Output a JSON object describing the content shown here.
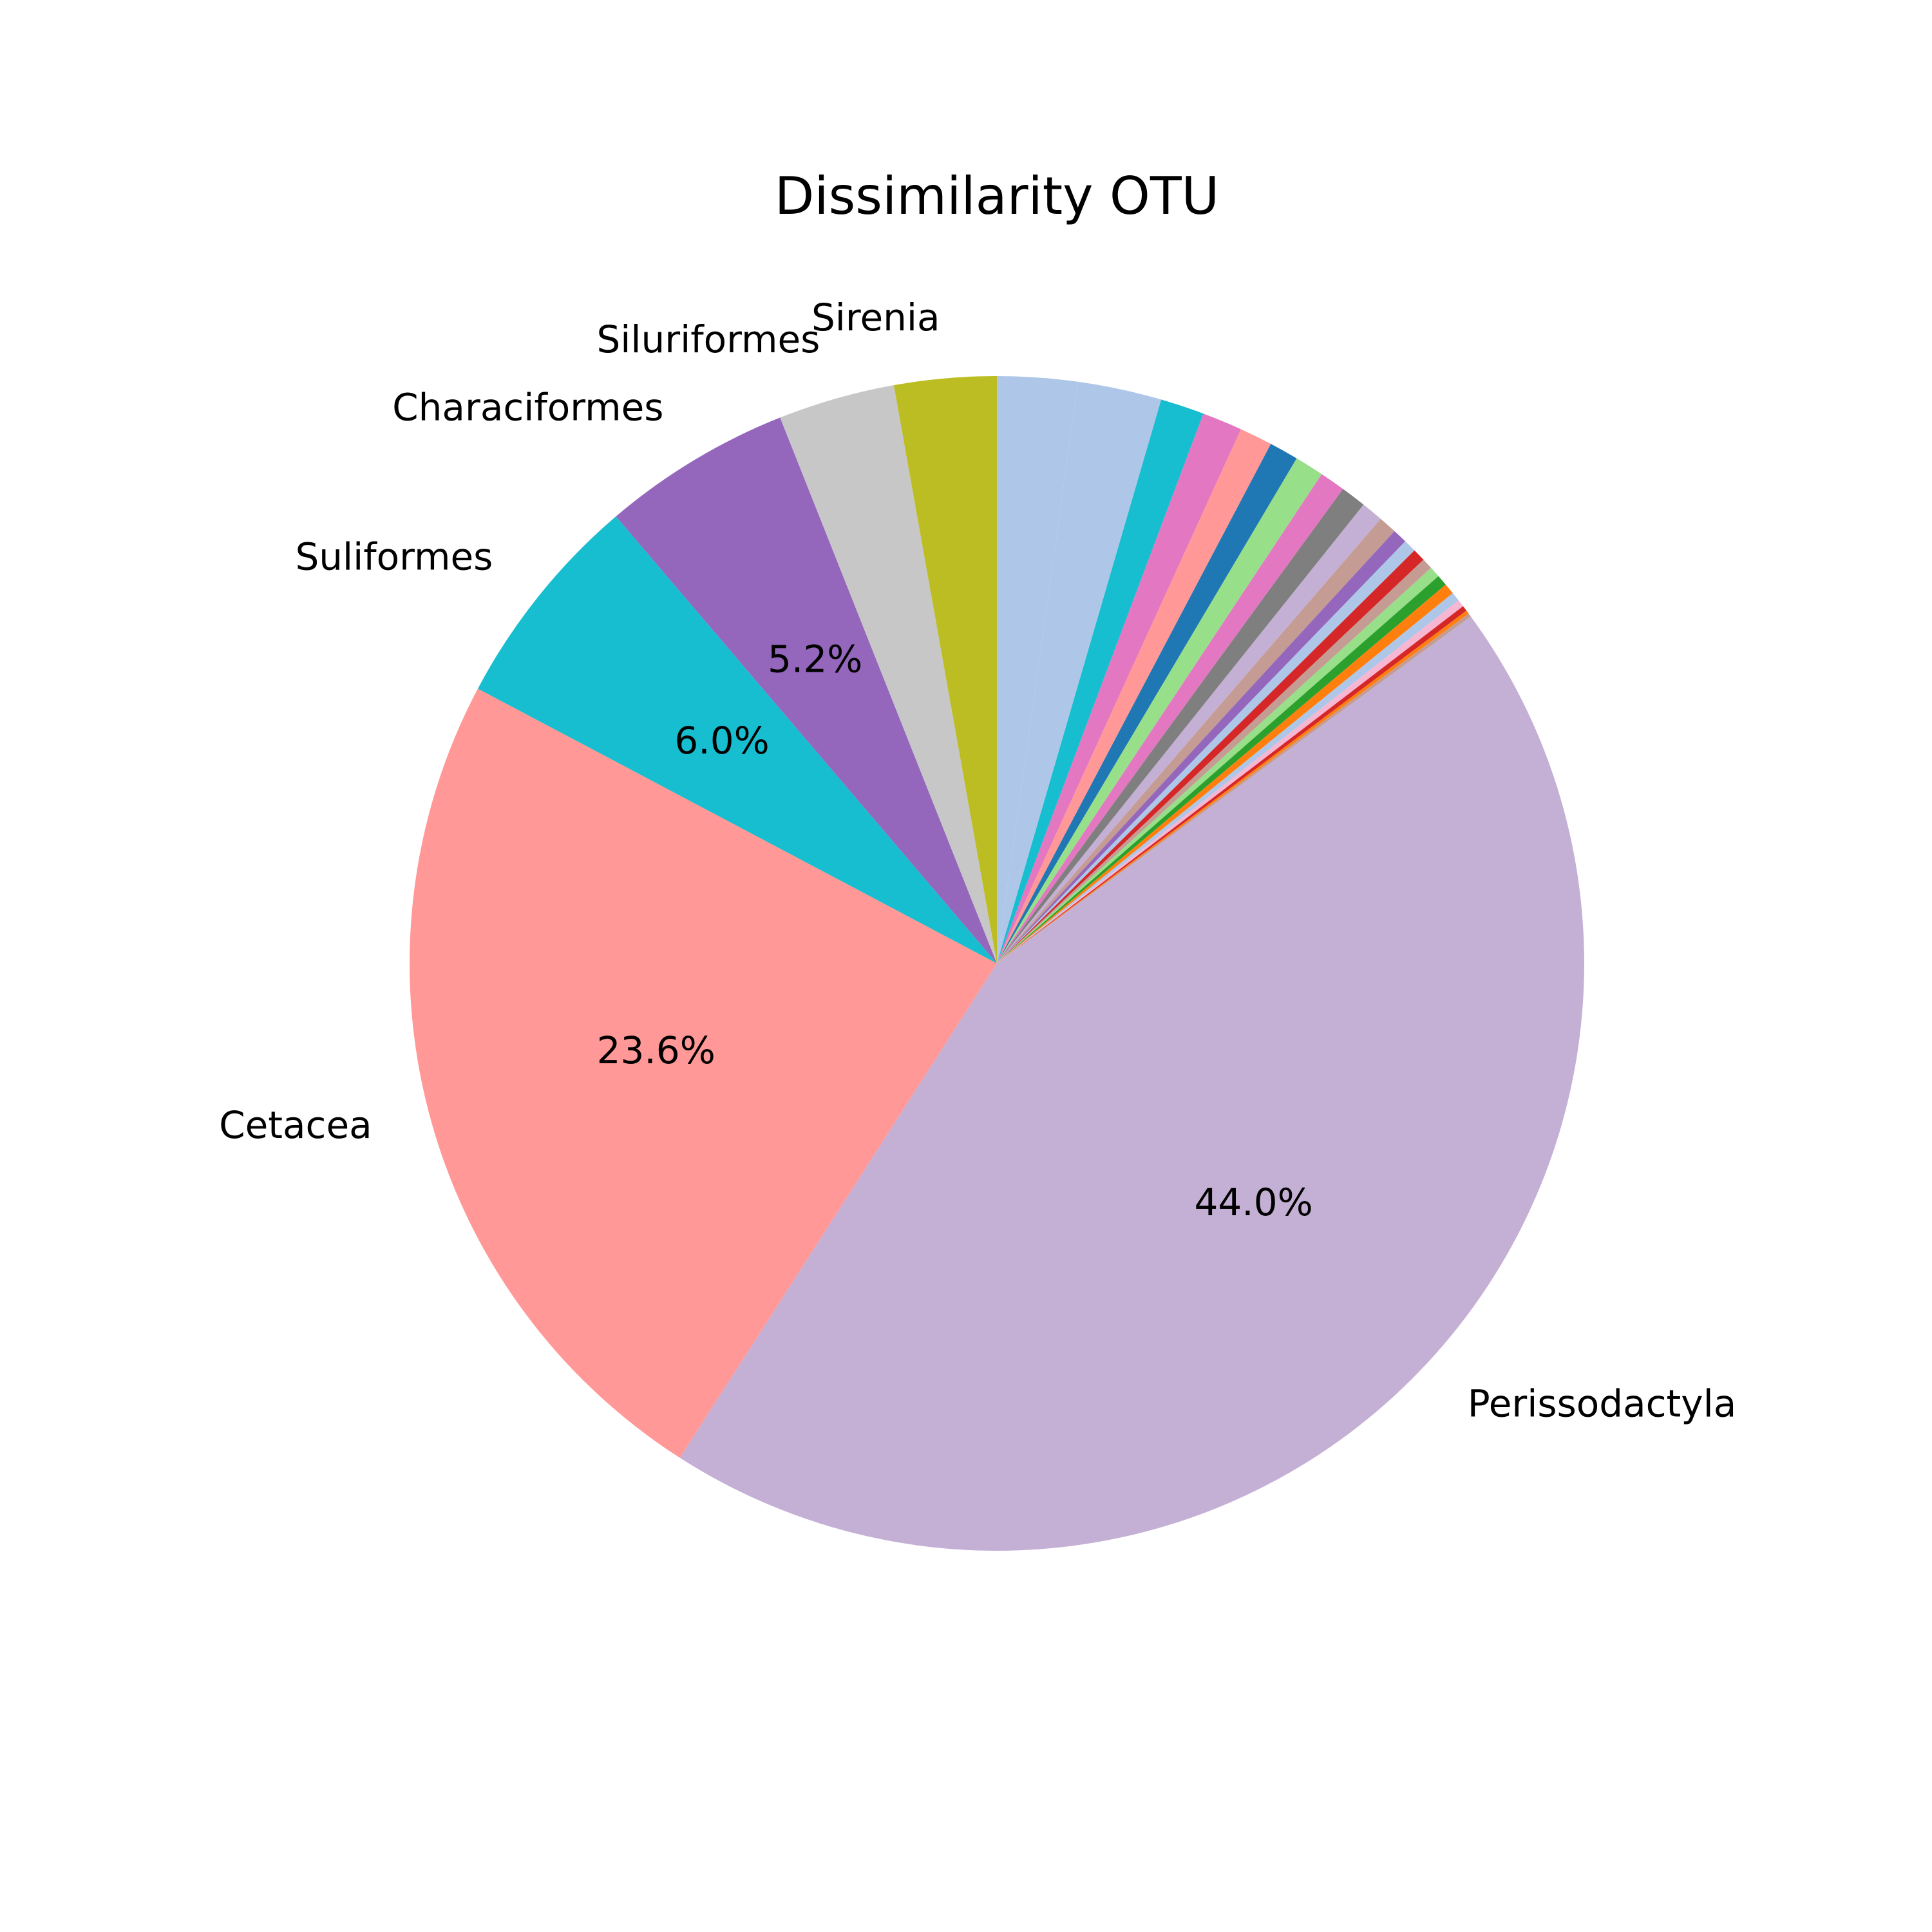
{
  "chart_data": {
    "type": "pie",
    "title": "Dissimilarity OTU",
    "start_angle_deg": 90,
    "direction": "clockwise",
    "slices": [
      {
        "label": "",
        "value": 2.2,
        "color": "#aec7e8"
      },
      {
        "label": "",
        "value": 2.3,
        "color": "#aec7e8"
      },
      {
        "label": "",
        "value": 1.2,
        "color": "#17becf"
      },
      {
        "label": "",
        "value": 1.1,
        "color": "#e377c2"
      },
      {
        "label": "",
        "value": 0.9,
        "color": "#ff9896"
      },
      {
        "label": "",
        "value": 0.8,
        "color": "#1f77b4"
      },
      {
        "label": "",
        "value": 0.8,
        "color": "#98df8a"
      },
      {
        "label": "",
        "value": 0.7,
        "color": "#e377c2"
      },
      {
        "label": "",
        "value": 0.7,
        "color": "#7f7f7f"
      },
      {
        "label": "",
        "value": 0.6,
        "color": "#c5b0d5"
      },
      {
        "label": "",
        "value": 0.5,
        "color": "#c49c94"
      },
      {
        "label": "",
        "value": 0.4,
        "color": "#9467bd"
      },
      {
        "label": "",
        "value": 0.35,
        "color": "#aec7e8"
      },
      {
        "label": "",
        "value": 0.35,
        "color": "#d62728"
      },
      {
        "label": "",
        "value": 0.3,
        "color": "#c49c94"
      },
      {
        "label": "",
        "value": 0.3,
        "color": "#98df8a"
      },
      {
        "label": "",
        "value": 0.3,
        "color": "#2ca02c"
      },
      {
        "label": "",
        "value": 0.3,
        "color": "#ff7f0e"
      },
      {
        "label": "",
        "value": 0.25,
        "color": "#aec7e8"
      },
      {
        "label": "",
        "value": 0.2,
        "color": "#f7b6d2"
      },
      {
        "label": "",
        "value": 0.15,
        "color": "#d62728"
      },
      {
        "label": "",
        "value": 0.1,
        "color": "#ff7f0e"
      },
      {
        "label": "",
        "value": 0.1,
        "color": "#c49c94"
      },
      {
        "label": "Perissodactyla",
        "value": 44.0,
        "pct_label": "44.0%",
        "color": "#c5b0d5"
      },
      {
        "label": "Cetacea",
        "value": 23.6,
        "pct_label": "23.6%",
        "color": "#ff9896"
      },
      {
        "label": "Suliformes",
        "value": 6.0,
        "pct_label": "6.0%",
        "color": "#17becf"
      },
      {
        "label": "Characiformes",
        "value": 5.2,
        "pct_label": "5.2%",
        "color": "#9467bd"
      },
      {
        "label": "Siluriformes",
        "value": 3.2,
        "color": "#c7c7c7"
      },
      {
        "label": "Sirenia",
        "value": 2.8,
        "color": "#bcbd22"
      }
    ]
  }
}
